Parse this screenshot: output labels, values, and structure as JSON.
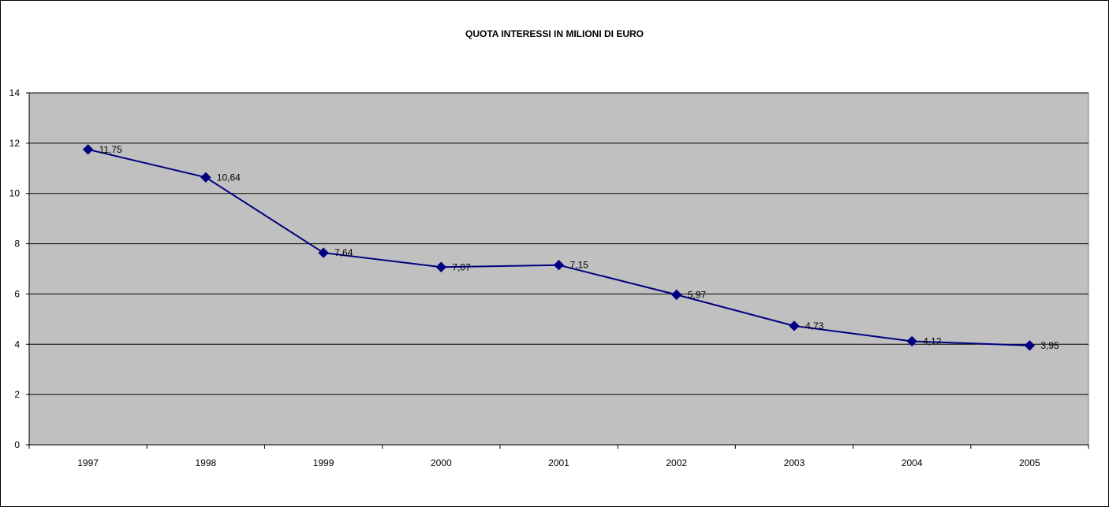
{
  "chart_data": {
    "type": "line",
    "title": "QUOTA INTERESSI IN MILIONI DI EURO",
    "xlabel": "",
    "ylabel": "",
    "categories": [
      "1997",
      "1998",
      "1999",
      "2000",
      "2001",
      "2002",
      "2003",
      "2004",
      "2005"
    ],
    "series": [
      {
        "values": [
          11.75,
          10.64,
          7.64,
          7.07,
          7.15,
          5.97,
          4.73,
          4.12,
          3.95
        ],
        "data_labels": [
          "11,75",
          "10,64",
          "7,64",
          "7,07",
          "7,15",
          "5,97",
          "4,73",
          "4,12",
          "3,95"
        ],
        "color": "#000080",
        "marker": "diamond"
      }
    ],
    "ylim": [
      0,
      14
    ],
    "yticks": [
      "0",
      "2",
      "4",
      "6",
      "8",
      "10",
      "12",
      "14"
    ],
    "grid": true,
    "legend": "none",
    "plot_background": "#c0c0c0",
    "gridline_color": "#000000"
  }
}
